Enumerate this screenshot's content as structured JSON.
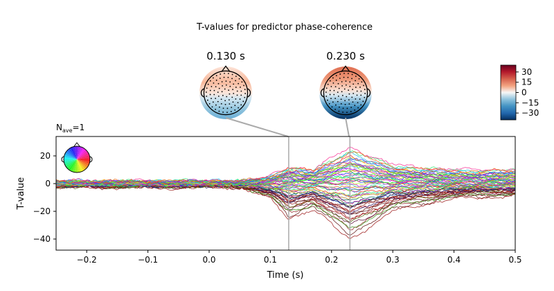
{
  "title": "T-values for predictor phase-coherence",
  "topomaps": [
    {
      "label": "0.130 s",
      "time": 0.13
    },
    {
      "label": "0.230 s",
      "time": 0.23
    }
  ],
  "colorbar": {
    "ticks": [
      30,
      15,
      0,
      -15,
      -30
    ],
    "tick_labels": [
      "30",
      "15",
      "0",
      "−15",
      "−30"
    ],
    "range": [
      -40,
      40
    ]
  },
  "nave": {
    "base": "N",
    "sub": "ave",
    "value": "=1"
  },
  "colors": {
    "positive": "#b2182b",
    "negative": "#2166ac",
    "marker_line": "#aaaaaa"
  },
  "chart_data": {
    "type": "line",
    "xlabel": "Time (s)",
    "ylabel": "T-value",
    "xlim": [
      -0.25,
      0.5
    ],
    "ylim": [
      -48,
      34
    ],
    "xticks": [
      -0.2,
      -0.1,
      0.0,
      0.1,
      0.2,
      0.3,
      0.4,
      0.5
    ],
    "xtick_labels": [
      "−0.2",
      "−0.1",
      "0.0",
      "0.1",
      "0.2",
      "0.3",
      "0.4",
      "0.5"
    ],
    "yticks": [
      20,
      0,
      -20,
      -40
    ],
    "ytick_labels": [
      "20",
      "0",
      "−20",
      "−40"
    ],
    "markers": [
      0.13,
      0.23
    ],
    "series_count": 64,
    "envelope": {
      "upper": {
        "x": [
          -0.25,
          0.05,
          0.1,
          0.13,
          0.17,
          0.23,
          0.3,
          0.4,
          0.5
        ],
        "y": [
          2,
          2,
          6,
          15,
          12,
          31,
          16,
          12,
          12
        ]
      },
      "lower": {
        "x": [
          -0.25,
          0.05,
          0.1,
          0.13,
          0.17,
          0.23,
          0.3,
          0.4,
          0.5
        ],
        "y": [
          -3,
          -3,
          -12,
          -28,
          -20,
          -45,
          -22,
          -12,
          -10
        ]
      }
    }
  }
}
